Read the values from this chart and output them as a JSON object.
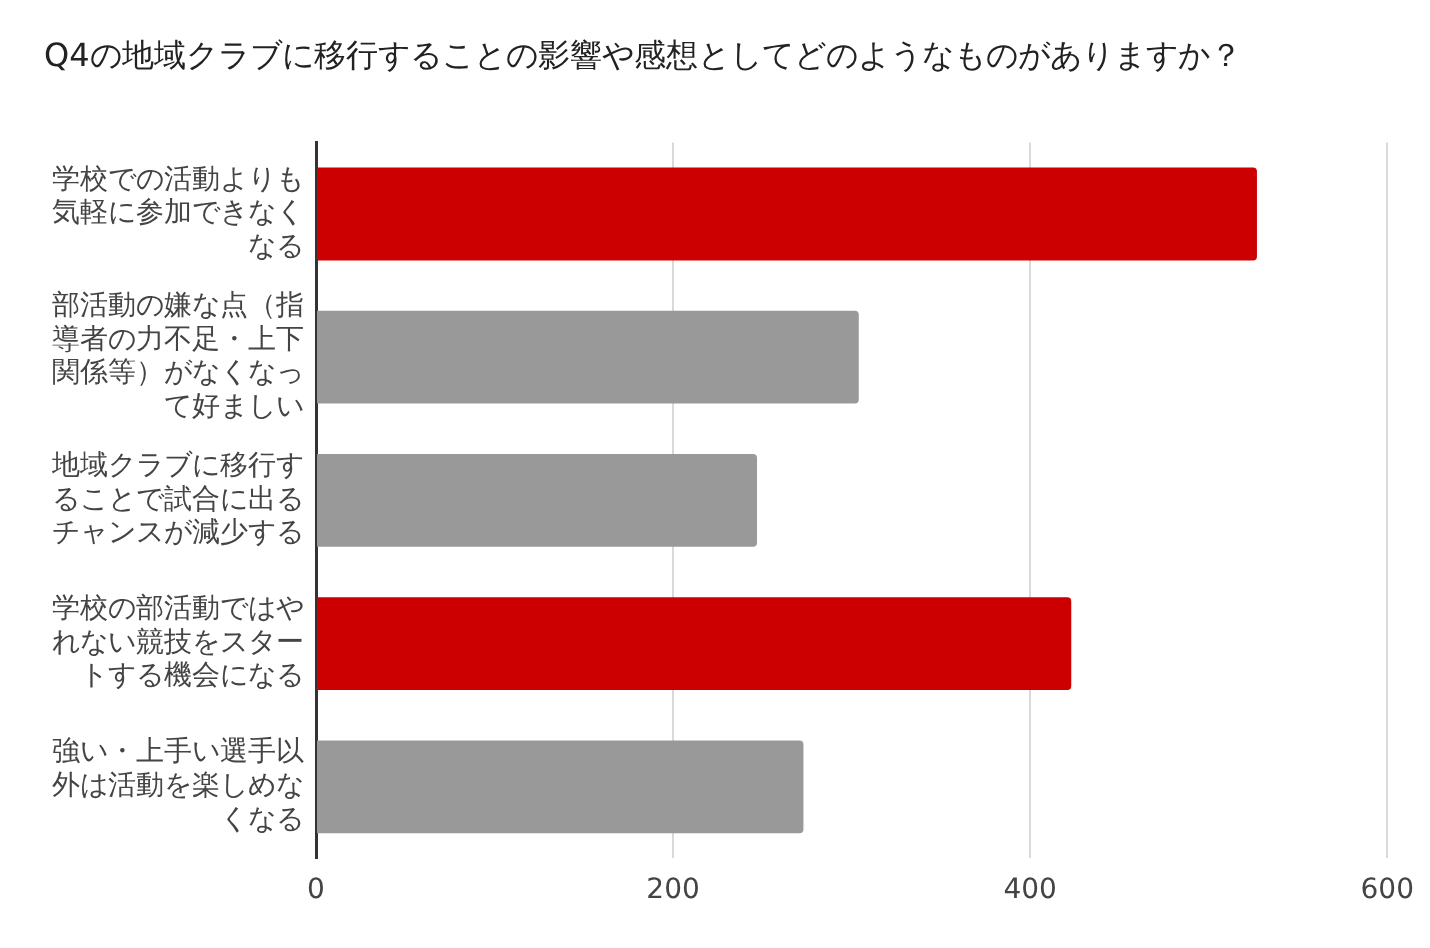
{
  "chart_data": {
    "type": "bar",
    "orientation": "horizontal",
    "title": "Q4の地域クラブに移行することの影響や感想としてどのようなものがありますか？",
    "categories": [
      "学校での活動よりも気軽に参加できなくなる",
      "部活動の嫌な点（指導者の力不足・上下関係等）がなくなって好ましい",
      "地域クラブに移行することで試合に出るチャンスが減少する",
      "学校の部活動ではやれない競技をスタートする機会になる",
      "強い・上手い選手以外は活動を楽しめなくなる"
    ],
    "values": [
      527,
      304,
      247,
      423,
      273
    ],
    "colors": [
      "#cc0000",
      "#999999",
      "#999999",
      "#cc0000",
      "#999999"
    ],
    "xlim": [
      0,
      600
    ],
    "xticks": [
      0,
      200,
      400,
      600
    ],
    "grid": "x",
    "legend": false
  }
}
